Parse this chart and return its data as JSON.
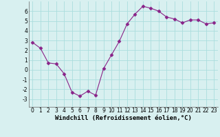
{
  "x": [
    0,
    1,
    2,
    3,
    4,
    5,
    6,
    7,
    8,
    9,
    10,
    11,
    12,
    13,
    14,
    15,
    16,
    17,
    18,
    19,
    20,
    21,
    22,
    23
  ],
  "y": [
    2.8,
    2.2,
    0.7,
    0.6,
    -0.4,
    -2.3,
    -2.7,
    -2.2,
    -2.6,
    0.1,
    1.5,
    2.9,
    4.7,
    5.7,
    6.5,
    6.3,
    6.0,
    5.4,
    5.2,
    4.8,
    5.1,
    5.1,
    4.7,
    4.8
  ],
  "line_color": "#882288",
  "marker": "D",
  "marker_size": 2.5,
  "background_color": "#d8f0f0",
  "grid_color": "#aadddd",
  "xlabel": "Windchill (Refroidissement éolien,°C)",
  "ylabel": "",
  "xlim": [
    -0.5,
    23.5
  ],
  "ylim": [
    -3.8,
    7.0
  ],
  "yticks": [
    -3,
    -2,
    -1,
    0,
    1,
    2,
    3,
    4,
    5,
    6
  ],
  "xticks": [
    0,
    1,
    2,
    3,
    4,
    5,
    6,
    7,
    8,
    9,
    10,
    11,
    12,
    13,
    14,
    15,
    16,
    17,
    18,
    19,
    20,
    21,
    22,
    23
  ],
  "tick_fontsize": 5.5,
  "xlabel_fontsize": 6.5
}
